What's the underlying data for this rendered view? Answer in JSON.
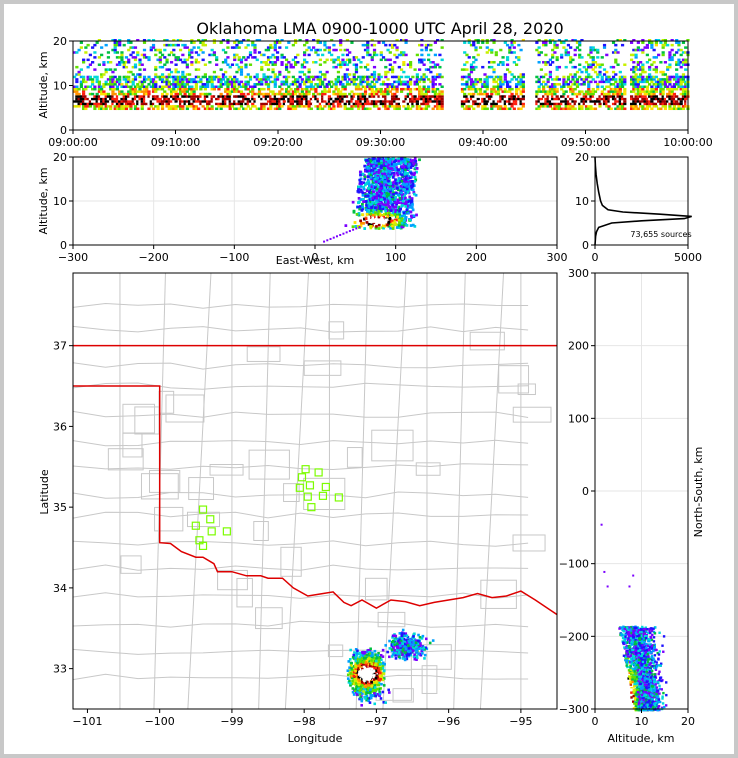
{
  "chart_data": [
    {
      "id": "time-altitude",
      "type": "heatmap",
      "title": "Oklahoma LMA 0900-1000 UTC April 28, 2020",
      "xlabel": "",
      "ylabel": "Altitude, km",
      "x_ticks": [
        "09:00:00",
        "09:10:00",
        "09:20:00",
        "09:30:00",
        "09:40:00",
        "09:50:00",
        "10:00:00"
      ],
      "y_ticks": [
        0,
        10,
        20
      ],
      "ylim": [
        0,
        20
      ],
      "gaps_minutes": [
        [
          36.0,
          37.8
        ],
        [
          43.8,
          45.0
        ],
        [
          53.8,
          54.3
        ]
      ]
    },
    {
      "id": "ew-altitude",
      "type": "heatmap",
      "xlabel": "East-West, km",
      "ylabel": "Altitude, km",
      "x_ticks": [
        -300,
        -200,
        -100,
        0,
        100,
        200,
        300
      ],
      "y_ticks": [
        0,
        10,
        20
      ],
      "xlim": [
        -300,
        300
      ],
      "ylim": [
        0,
        20
      ]
    },
    {
      "id": "altitude-histogram",
      "type": "line",
      "annotation": "73,655 sources",
      "x_ticks": [
        0,
        5000
      ],
      "y_ticks": [
        0,
        10,
        20
      ],
      "xlim": [
        0,
        5000
      ],
      "ylim": [
        0,
        20
      ],
      "profile": {
        "altitude": [
          0,
          2,
          3,
          4,
          5,
          5.5,
          6,
          6.5,
          7,
          7.5,
          8,
          9,
          10,
          12,
          14,
          16,
          18,
          20
        ],
        "count": [
          0,
          30,
          80,
          200,
          900,
          2500,
          4800,
          5200,
          3500,
          1500,
          700,
          400,
          300,
          200,
          120,
          60,
          20,
          0
        ]
      }
    },
    {
      "id": "plan-view",
      "type": "scatter",
      "xlabel": "Longitude",
      "ylabel": "Latitude",
      "x_ticks": [
        -101,
        -100,
        -99,
        -98,
        -97,
        -96,
        -95
      ],
      "y_ticks": [
        33,
        34,
        35,
        36,
        37
      ],
      "xlim": [
        -101.2,
        -94.5
      ],
      "ylim": [
        32.5,
        37.9
      ],
      "stations": [
        {
          "lon": -99.4,
          "lat": 34.97
        },
        {
          "lon": -99.3,
          "lat": 34.85
        },
        {
          "lon": -99.5,
          "lat": 34.77
        },
        {
          "lon": -99.28,
          "lat": 34.7
        },
        {
          "lon": -99.45,
          "lat": 34.59
        },
        {
          "lon": -99.4,
          "lat": 34.52
        },
        {
          "lon": -99.07,
          "lat": 34.7
        },
        {
          "lon": -97.98,
          "lat": 35.47
        },
        {
          "lon": -98.03,
          "lat": 35.37
        },
        {
          "lon": -97.8,
          "lat": 35.43
        },
        {
          "lon": -98.06,
          "lat": 35.24
        },
        {
          "lon": -97.92,
          "lat": 35.27
        },
        {
          "lon": -97.7,
          "lat": 35.25
        },
        {
          "lon": -97.95,
          "lat": 35.13
        },
        {
          "lon": -97.74,
          "lat": 35.14
        },
        {
          "lon": -97.52,
          "lat": 35.12
        },
        {
          "lon": -97.9,
          "lat": 35.0
        }
      ],
      "station_color": "#7CFC00",
      "state_border_color": "#dd0000"
    },
    {
      "id": "ns-altitude",
      "type": "heatmap",
      "xlabel": "Altitude, km",
      "ylabel": "North-South, km",
      "x_ticks": [
        0,
        10,
        20
      ],
      "y_ticks": [
        -300,
        -200,
        -100,
        0,
        100,
        200,
        300
      ],
      "xlim": [
        0,
        20
      ],
      "ylim": [
        -300,
        300
      ]
    }
  ]
}
